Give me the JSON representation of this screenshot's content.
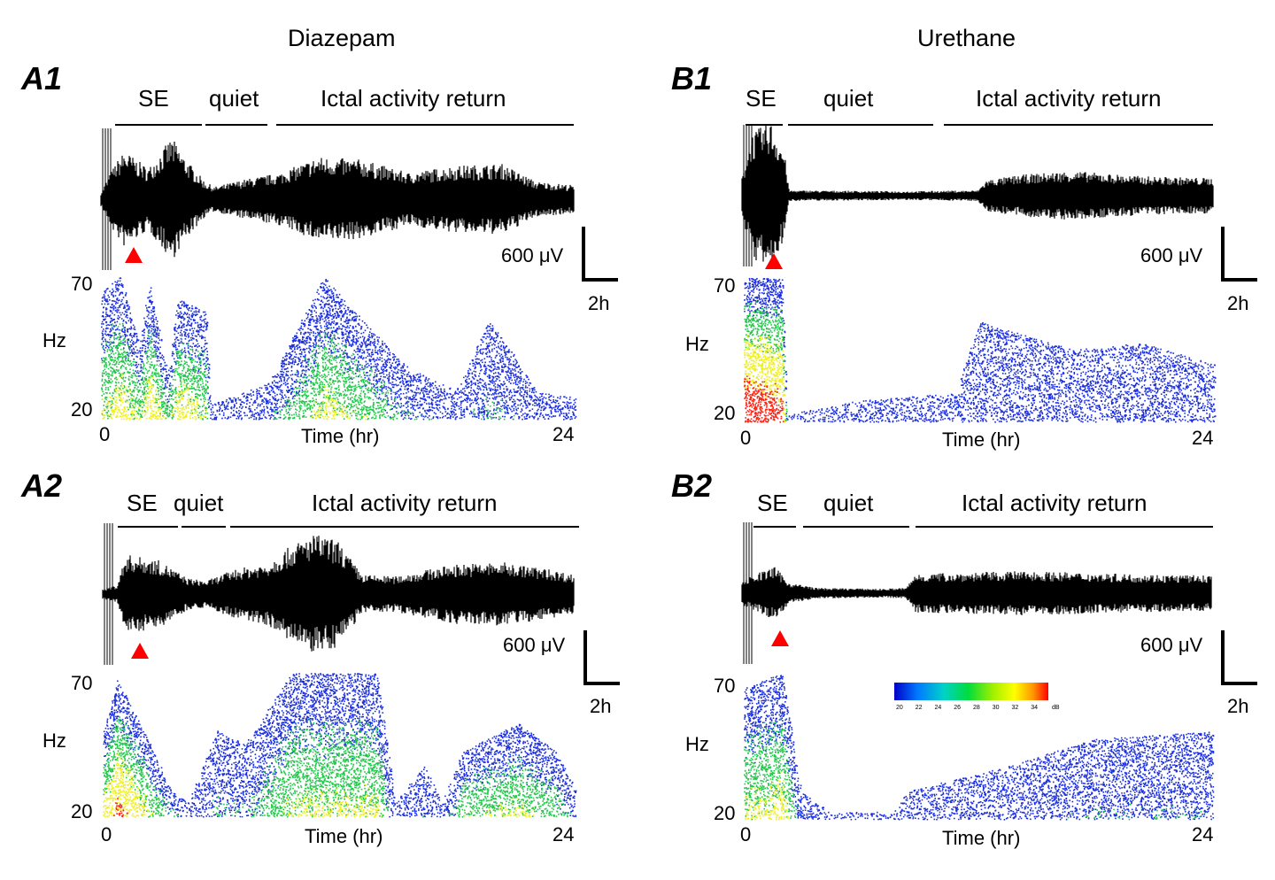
{
  "figure": {
    "columns": [
      {
        "title": "Diazepam"
      },
      {
        "title": "Urethane"
      }
    ],
    "panels": [
      {
        "id": "A1",
        "label": "A1",
        "phases": [
          "SE",
          "quiet",
          "Ictal activity return"
        ],
        "scale_voltage": "600 μV",
        "scale_time": "2h",
        "y_top": "70",
        "y_unit": "Hz",
        "y_bottom": "20",
        "x_start": "0",
        "x_label": "Time (hr)",
        "x_end": "24"
      },
      {
        "id": "B1",
        "label": "B1",
        "phases": [
          "SE",
          "quiet",
          "Ictal activity return"
        ],
        "scale_voltage": "600 μV",
        "scale_time": "2h",
        "y_top": "70",
        "y_unit": "Hz",
        "y_bottom": "20",
        "x_start": "0",
        "x_label": "Time (hr)",
        "x_end": "24"
      },
      {
        "id": "A2",
        "label": "A2",
        "phases": [
          "SE",
          "quiet",
          "Ictal activity return"
        ],
        "scale_voltage": "600 μV",
        "scale_time": "2h",
        "y_top": "70",
        "y_unit": "Hz",
        "y_bottom": "20",
        "x_start": "0",
        "x_label": "Time (hr)",
        "x_end": "24"
      },
      {
        "id": "B2",
        "label": "B2",
        "phases": [
          "SE",
          "quiet",
          "Ictal activity return"
        ],
        "scale_voltage": "600 μV",
        "scale_time": "2h",
        "y_top": "70",
        "y_unit": "Hz",
        "y_bottom": "20",
        "x_start": "0",
        "x_label": "Time (hr)",
        "x_end": "24"
      }
    ],
    "colorbar": {
      "ticks": [
        "20",
        "22",
        "24",
        "26",
        "28",
        "30",
        "32",
        "34"
      ],
      "unit": "dB",
      "colors": [
        "#0000c8",
        "#0078ff",
        "#00d2c8",
        "#00dc3c",
        "#a0f000",
        "#ffff00",
        "#ff9600",
        "#ff0000"
      ]
    },
    "colors": {
      "trace": "#000000",
      "marker": "#ff0000",
      "spectro_low": "#1a2ee0",
      "spectro_mid": "#22c84a",
      "spectro_high": "#f0f020",
      "spectro_peak": "#ff2010"
    }
  }
}
